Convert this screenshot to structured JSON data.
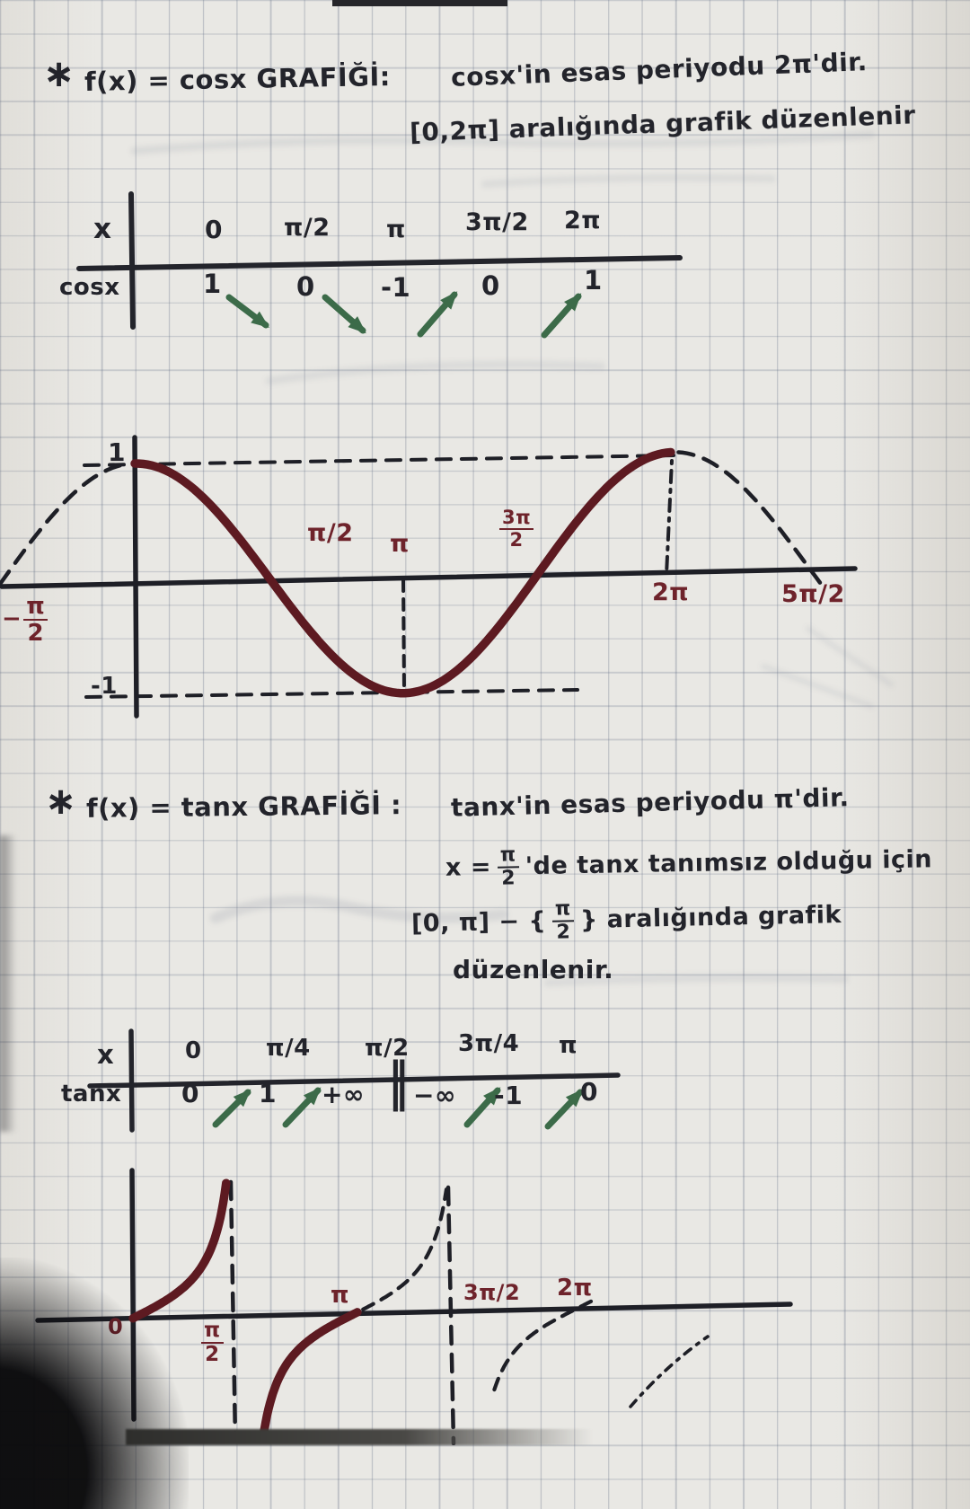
{
  "colors": {
    "ink": "#23242b",
    "curve_maroon": "#5d1a21",
    "label_maroon": "#6e232b",
    "arrow_green": "#3c6b49",
    "grid_blue": "#606c84"
  },
  "cos_section": {
    "bullet": "∗",
    "heading": "f(x) = cosx GRAFİĞİ:",
    "period_note": "cosx'in esas periyodu 2π'dir.",
    "range_note": "[0,2π] aralığında grafik düzenlenir",
    "table": {
      "x_header": "x",
      "y_header": "cosx",
      "x_values": [
        "0",
        "π/2",
        "π",
        "3π/2",
        "2π"
      ],
      "y_values": [
        "1",
        "0",
        "-1",
        "0",
        "1"
      ],
      "trends": [
        "down",
        "down",
        "up",
        "up"
      ]
    },
    "graph_labels": {
      "one": "1",
      "minus_one": "-1",
      "half_pi": "π/2",
      "pi": "π",
      "three_pi_num": "3π",
      "three_pi_den": "2",
      "two_pi": "2π",
      "five_half_pi": "5π/2",
      "neg_minus": "−",
      "neg_num": "π",
      "neg_den": "2"
    }
  },
  "tan_section": {
    "bullet": "∗",
    "heading": "f(x) = tanx GRAFİĞİ :",
    "period_note": "tanx'in esas periyodu π'dir.",
    "undef_pre": "x =",
    "undef_frac_num": "π",
    "undef_frac_den": "2",
    "undef_post": "'de tanx tanımsız olduğu için",
    "range_pre": "[0, π] − {",
    "range_frac_num": "π",
    "range_frac_den": "2",
    "range_post": "} aralığında grafik",
    "range_end": "düzenlenir.",
    "table": {
      "x_header": "x",
      "y_header": "tanx",
      "x_values": [
        "0",
        "π/4",
        "π/2",
        "3π/4",
        "π"
      ],
      "y_values": [
        "0",
        "1",
        "+∞",
        "−∞",
        "-1",
        "0"
      ],
      "discontinuity": "‖",
      "trends": [
        "up",
        "up",
        "up",
        "up"
      ]
    },
    "graph_labels": {
      "zero": "0",
      "half_num": "π",
      "half_den": "2",
      "pi": "π",
      "three_half": "3π/2",
      "two_pi": "2π"
    }
  },
  "chart_data": [
    {
      "type": "table",
      "name": "cosx-value-table",
      "columns": [
        "0",
        "π/2",
        "π",
        "3π/2",
        "2π"
      ],
      "row_label": "cosx",
      "values": [
        "1",
        "0",
        "-1",
        "0",
        "1"
      ],
      "trends_between": [
        "↘",
        "↘",
        "↗",
        "↗"
      ]
    },
    {
      "type": "line",
      "name": "cosx-graph",
      "function": "y = cos(x)",
      "x_solid": [
        0,
        6.2832
      ],
      "x_dashed_left": [
        -1.5708,
        -0.04
      ],
      "x_dashed_right": [
        6.34,
        8.0
      ],
      "ylim": [
        -1,
        1
      ],
      "x_tick_labels": [
        "-π/2",
        "π/2",
        "π",
        "3π/2",
        "2π",
        "5π/2"
      ],
      "y_tick_labels": [
        "1",
        "-1"
      ],
      "guides": [
        "y=1 dashed from 0 to 2π",
        "y=-1 dashed",
        "vertical dashed at x=π",
        "vertical dash-dot at x=2π"
      ],
      "legend": "none",
      "grid": true
    },
    {
      "type": "table",
      "name": "tanx-value-table",
      "columns": [
        "0",
        "π/4",
        "π/2",
        "3π/4",
        "π"
      ],
      "row_label": "tanx",
      "values": [
        "0",
        "1",
        "+∞",
        "−∞",
        "-1",
        "0"
      ],
      "discontinuity_at": "π/2",
      "trends_between": [
        "↗",
        "↗",
        "↗",
        "↗"
      ]
    },
    {
      "type": "line",
      "name": "tanx-graph",
      "function": "y = tan(x)",
      "solid_branches": [
        [
          0,
          1.33
        ],
        [
          1.84,
          3.19
        ]
      ],
      "dashed_branches": [
        [
          3.26,
          4.62
        ],
        [
          5.12,
          6.52
        ]
      ],
      "asymptotes_x": [
        1.5708,
        4.7124
      ],
      "x_tick_labels": [
        "0",
        "π/2",
        "π",
        "3π/2",
        "2π"
      ],
      "legend": "none",
      "grid": true
    }
  ]
}
